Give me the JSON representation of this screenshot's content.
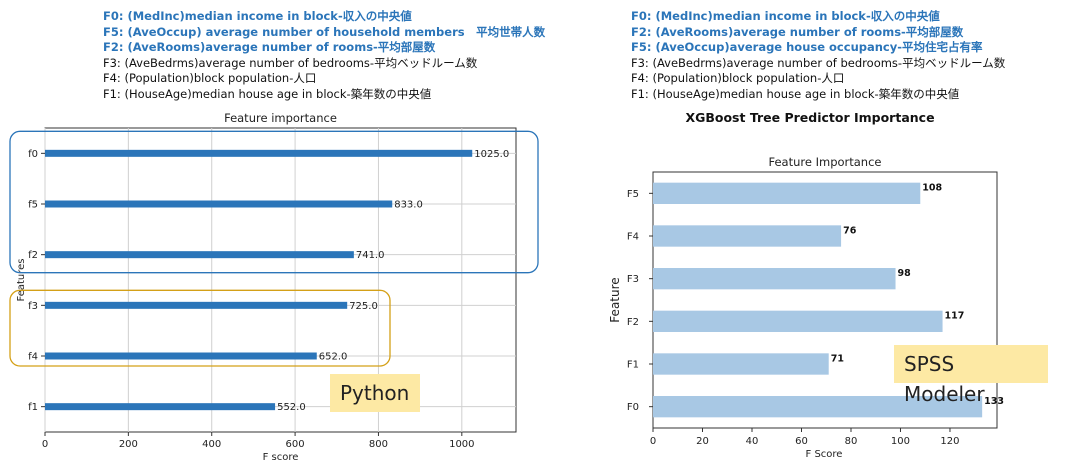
{
  "legend_left": [
    {
      "text": "F0: (MedInc)median income in block-収入の中央値",
      "highlight": true
    },
    {
      "text": "F5: (AveOccup) average number of household members　平均世帯人数",
      "highlight": true
    },
    {
      "text": "F2: (AveRooms)average number of rooms-平均部屋数",
      "highlight": true
    },
    {
      "text": "F3: (AveBedrms)average number of bedrooms-平均ベッドルーム数",
      "highlight": false
    },
    {
      "text": "F4: (Population)block population-人口",
      "highlight": false
    },
    {
      "text": "F1: (HouseAge)median house age in block-築年数の中央値",
      "highlight": false
    }
  ],
  "legend_right": [
    {
      "text": "F0: (MedInc)median income in block-収入の中央値",
      "highlight": true
    },
    {
      "text": "F2: (AveRooms)average number of rooms-平均部屋数",
      "highlight": true
    },
    {
      "text": "F5: (AveOccup)average house occupancy-平均住宅占有率",
      "highlight": true
    },
    {
      "text": "F3: (AveBedrms)average number of bedrooms-平均ベッドルーム数",
      "highlight": false
    },
    {
      "text": "F4: (Population)block population-人口",
      "highlight": false
    },
    {
      "text": "F1: (HouseAge)median house age in block-築年数の中央値",
      "highlight": false
    }
  ],
  "tags": {
    "python": "Python",
    "spss": "SPSS Modeler"
  },
  "colors": {
    "python_bar": "#2b75b9",
    "spss_bar": "#a8c8e4",
    "blue_box": "#2b75b9",
    "orange_box": "#d4a017"
  },
  "chart_data": [
    {
      "type": "bar",
      "orientation": "horizontal",
      "title": "Feature importance",
      "xlabel": "F score",
      "ylabel": "Features",
      "categories": [
        "f0",
        "f5",
        "f2",
        "f3",
        "f4",
        "f1"
      ],
      "values": [
        1025,
        833,
        741,
        725,
        652,
        552
      ],
      "data_labels": [
        "1025.0",
        "833.0",
        "741.0",
        "725.0",
        "652.0",
        "552.0"
      ],
      "xlim": [
        0,
        1130
      ],
      "xticks": [
        0,
        200,
        400,
        600,
        800,
        1000
      ],
      "grid": true,
      "groups": [
        {
          "color": "#2b75b9",
          "categories": [
            "f0",
            "f5",
            "f2"
          ]
        },
        {
          "color": "#d4a017",
          "categories": [
            "f3",
            "f4"
          ]
        }
      ]
    },
    {
      "type": "bar",
      "orientation": "horizontal",
      "suptitle": "XGBoost Tree Predictor Importance",
      "title": "Feature Importance",
      "xlabel": "F Score",
      "ylabel": "Feature",
      "categories": [
        "F5",
        "F4",
        "F3",
        "F2",
        "F1",
        "F0"
      ],
      "values": [
        108,
        76,
        98,
        117,
        71,
        133
      ],
      "data_labels": [
        "108",
        "76",
        "98",
        "117",
        "71",
        "133"
      ],
      "xlim": [
        0,
        139
      ],
      "xticks": [
        0,
        20,
        40,
        60,
        80,
        100,
        120
      ],
      "grid": false
    }
  ]
}
